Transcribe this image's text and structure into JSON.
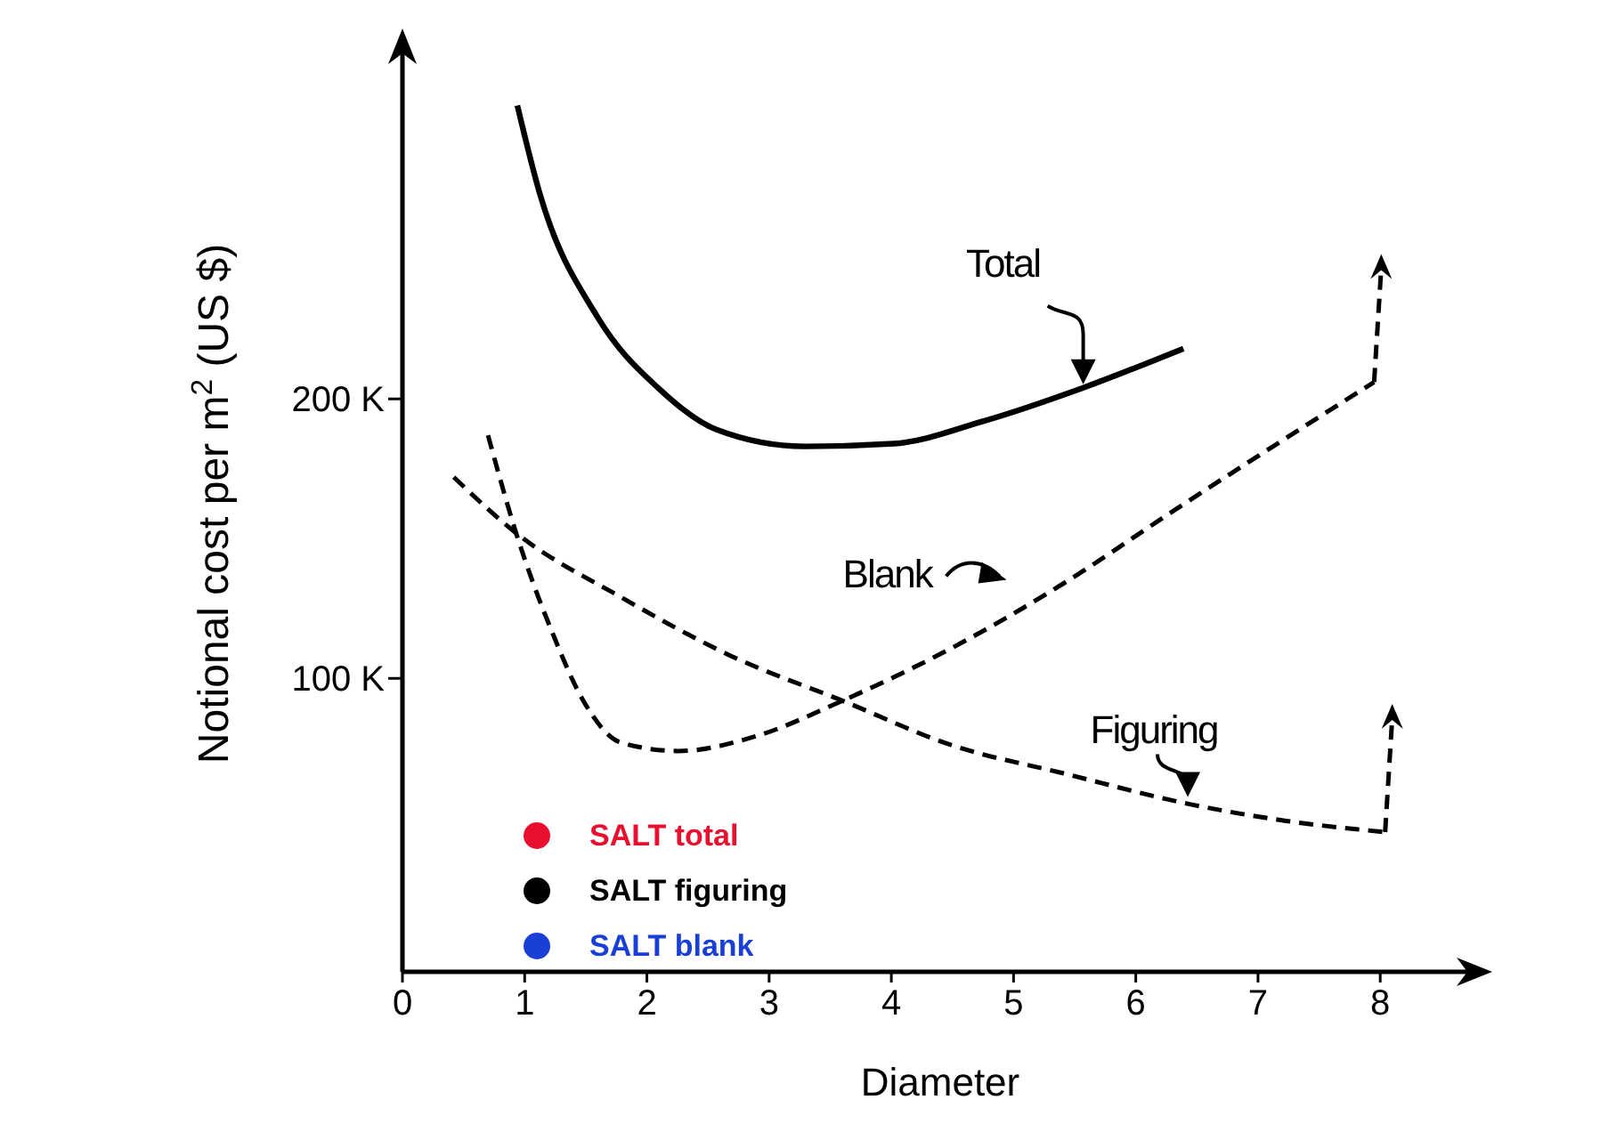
{
  "chart_data": {
    "type": "line",
    "xlabel": "Diameter",
    "ylabel": "Notional cost per m$^{2}$ (US $)",
    "xlim": [
      0,
      8.8
    ],
    "xticks": [
      0,
      1,
      2,
      3,
      4,
      5,
      6,
      7,
      8
    ],
    "ylim": [
      -5000,
      330000
    ],
    "yticks": [
      {
        "value": 100000,
        "label": "100 K"
      },
      {
        "value": 200000,
        "label": "200 K"
      }
    ],
    "grid": false,
    "legend": "bottom left",
    "marker": "none",
    "series": [
      {
        "name": "Total",
        "color": "#000000",
        "line_style": "solid",
        "x": [
          0.94,
          1.12,
          1.6,
          2.09,
          2.57,
          3.29,
          4.02,
          4.75,
          5.57,
          6.39
        ],
        "values": [
          305000,
          274000,
          229000,
          204000,
          189000,
          183000,
          184000,
          192000,
          204000,
          218000
        ]
      },
      {
        "name": "Blank",
        "color": "#000000",
        "line_style": "dashed",
        "x": [
          0.7,
          0.93,
          1.23,
          1.48,
          1.79,
          2.26,
          2.87,
          3.6,
          4.5,
          5.41,
          6.31,
          7.23,
          7.95
        ],
        "values": [
          187000,
          152000,
          116000,
          92000,
          77000,
          74000,
          79000,
          92000,
          111000,
          134000,
          160000,
          186000,
          206000
        ]
      },
      {
        "name": "Figuring",
        "color": "#000000",
        "line_style": "dashed",
        "x": [
          0.42,
          0.93,
          1.79,
          2.69,
          3.6,
          4.5,
          5.41,
          6.44,
          7.23,
          8.04
        ],
        "values": [
          172000,
          152000,
          129000,
          108000,
          92000,
          76000,
          66000,
          55000,
          49000,
          45000
        ]
      },
      {
        "name": "SALT total",
        "color": "#e8102e",
        "type": "scatter"
      },
      {
        "name": "SALT figuring",
        "color": "#000000",
        "type": "scatter"
      },
      {
        "name": "SALT blank",
        "color": "#1a3fd4",
        "type": "scatter"
      }
    ]
  }
}
